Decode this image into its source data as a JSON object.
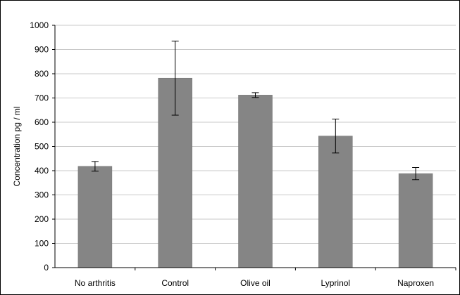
{
  "chart_data": {
    "type": "bar",
    "title": "",
    "xlabel": "",
    "ylabel": "Concentration pg / ml",
    "ylim": [
      0,
      1000
    ],
    "yticks": [
      0,
      100,
      200,
      300,
      400,
      500,
      600,
      700,
      800,
      900,
      1000
    ],
    "grid": true,
    "legend": "none",
    "categories": [
      "No  arthritis",
      "Control",
      "Olive oil",
      "Lyprinol",
      "Naproxen"
    ],
    "series": [
      {
        "values": [
          418,
          782,
          712,
          543,
          388
        ],
        "error": [
          20,
          153,
          10,
          70,
          25
        ],
        "color": "#858585"
      }
    ]
  },
  "colors": {
    "bar": "#858585",
    "bar_edge": "#6f6f6f",
    "grid": "#c8c8c8",
    "axis": "#000000",
    "error_bar": "#000000"
  }
}
